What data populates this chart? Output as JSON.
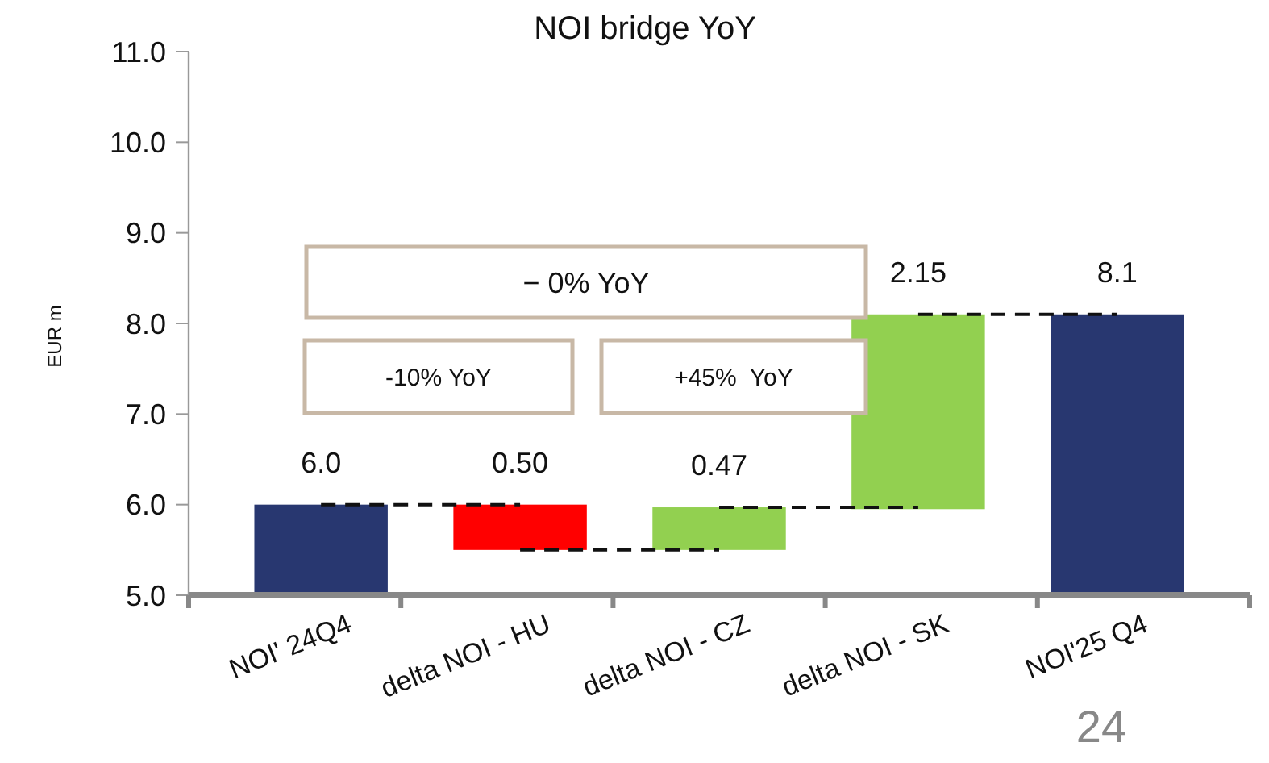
{
  "chart_data": {
    "type": "bar",
    "title": "NOI bridge YoY",
    "ylabel": "EUR m",
    "categories": [
      "NOI' 24Q4",
      "delta NOI - HU",
      "delta NOI - CZ",
      "delta NOI - SK",
      "NOI'25 Q4"
    ],
    "base": [
      5,
      6.0,
      5.5,
      5.95,
      5
    ],
    "values": [
      1.0,
      -0.5,
      0.47,
      2.15,
      3.1
    ],
    "value_labels": [
      "6.0",
      "0.50",
      "0.47",
      "2.15",
      "8.1"
    ],
    "colors": [
      "#283770",
      "#ff0000",
      "#92d050",
      "#92d050",
      "#283770"
    ],
    "ylim": [
      5,
      11
    ],
    "yticks": [
      {
        "value": 5,
        "label": "5.0"
      },
      {
        "value": 6,
        "label": "6.0"
      },
      {
        "value": 7,
        "label": "7.0"
      },
      {
        "value": 8,
        "label": "8.0"
      },
      {
        "value": 9,
        "label": "9.0"
      },
      {
        "value": 10,
        "label": "10.0"
      },
      {
        "value": 11,
        "label": "11.0"
      }
    ],
    "grid": false,
    "annotations": [
      "− 0% YoY",
      "-10% YoY",
      "+45%  YoY",
      "24"
    ]
  }
}
